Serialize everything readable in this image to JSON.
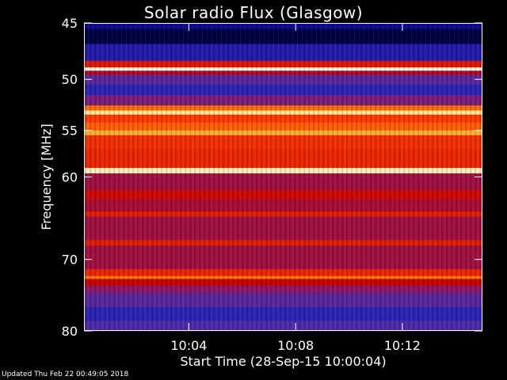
{
  "chart_data": {
    "type": "heatmap",
    "title": "Solar radio Flux (Glasgow)",
    "xlabel": "Start Time (28-Sep-15 10:00:04)",
    "ylabel": "Frequency [MHz]",
    "footer": "Updated Thu Feb 22 00:49:05 2018",
    "x_ticks": [
      "10:04",
      "10:08",
      "10:12"
    ],
    "x_tick_minutes": [
      4,
      8,
      12
    ],
    "xlim_minutes": [
      0.07,
      15
    ],
    "y_ticks": [
      45,
      50,
      55,
      60,
      70,
      80
    ],
    "ylim": [
      45,
      80
    ],
    "y_scale": "log",
    "colormap": [
      "#000014",
      "#00008c",
      "#3a2fbf",
      "#8c1a6a",
      "#c80000",
      "#ff3c00",
      "#ff8c00",
      "#ffe680",
      "#ffffff"
    ],
    "frequency_bands": [
      {
        "from": 44.8,
        "to": 45.5,
        "level": 0.15
      },
      {
        "from": 45.5,
        "to": 46.8,
        "level": 0.05
      },
      {
        "from": 46.8,
        "to": 48.3,
        "level": 0.2
      },
      {
        "from": 48.3,
        "to": 48.9,
        "level": 0.55
      },
      {
        "from": 48.9,
        "to": 49.2,
        "level": 0.97
      },
      {
        "from": 49.2,
        "to": 49.6,
        "level": 0.45
      },
      {
        "from": 49.6,
        "to": 50.5,
        "level": 0.3
      },
      {
        "from": 50.5,
        "to": 51.5,
        "level": 0.22
      },
      {
        "from": 51.5,
        "to": 52.5,
        "level": 0.35
      },
      {
        "from": 52.5,
        "to": 53.0,
        "level": 0.7
      },
      {
        "from": 53.0,
        "to": 53.4,
        "level": 0.9
      },
      {
        "from": 53.4,
        "to": 54.2,
        "level": 0.62
      },
      {
        "from": 54.2,
        "to": 55.0,
        "level": 0.68
      },
      {
        "from": 55.0,
        "to": 55.5,
        "level": 0.8
      },
      {
        "from": 55.5,
        "to": 57.0,
        "level": 0.6
      },
      {
        "from": 57.0,
        "to": 59.0,
        "level": 0.58
      },
      {
        "from": 59.0,
        "to": 59.6,
        "level": 0.93
      },
      {
        "from": 59.6,
        "to": 61.5,
        "level": 0.42
      },
      {
        "from": 61.5,
        "to": 62.5,
        "level": 0.52
      },
      {
        "from": 62.5,
        "to": 64.0,
        "level": 0.44
      },
      {
        "from": 64.0,
        "to": 64.6,
        "level": 0.56
      },
      {
        "from": 64.6,
        "to": 67.5,
        "level": 0.42
      },
      {
        "from": 67.5,
        "to": 68.2,
        "level": 0.56
      },
      {
        "from": 68.2,
        "to": 71.3,
        "level": 0.42
      },
      {
        "from": 71.3,
        "to": 72.2,
        "level": 0.58
      },
      {
        "from": 72.2,
        "to": 72.6,
        "level": 0.72
      },
      {
        "from": 72.6,
        "to": 73.5,
        "level": 0.5
      },
      {
        "from": 73.5,
        "to": 74.5,
        "level": 0.38
      },
      {
        "from": 74.5,
        "to": 76.5,
        "level": 0.3
      },
      {
        "from": 76.5,
        "to": 78.5,
        "level": 0.22
      },
      {
        "from": 78.5,
        "to": 80.2,
        "level": 0.28
      }
    ]
  }
}
